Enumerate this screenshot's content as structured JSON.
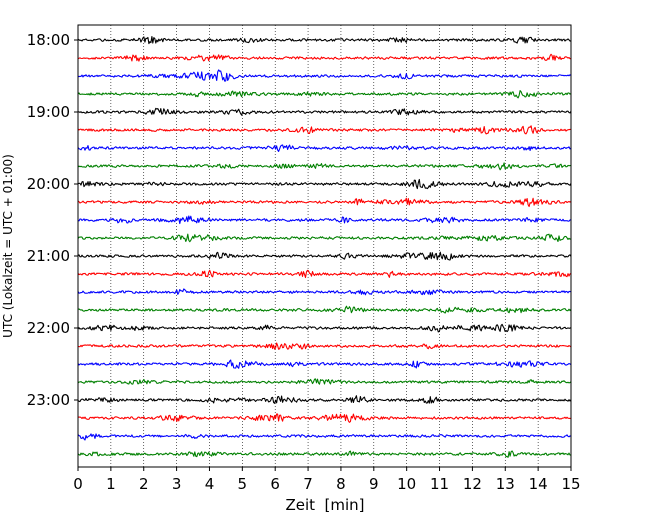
{
  "chart_data": {
    "type": "line",
    "subtype": "helicorder-seismogram",
    "xlabel": "Zeit  [min]",
    "ylabel": "UTC (Lokalzeit = UTC + 01:00)",
    "xlim": [
      0,
      15
    ],
    "x_ticks": [
      "0",
      "1",
      "2",
      "3",
      "4",
      "5",
      "6",
      "7",
      "8",
      "9",
      "10",
      "11",
      "12",
      "13",
      "14",
      "15"
    ],
    "y_ticks": [
      "18:00",
      "19:00",
      "20:00",
      "21:00",
      "22:00",
      "23:00"
    ],
    "lines_per_hour": 4,
    "line_minutes": 15,
    "start_time": "18:00",
    "n_traces": 24,
    "trace_colors": [
      "#000000",
      "#ff0000",
      "#0000ff",
      "#008000"
    ],
    "grid": "vertical-dotted",
    "legend": "none"
  }
}
